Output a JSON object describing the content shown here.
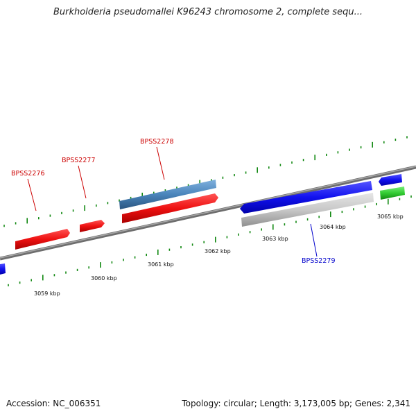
{
  "title": "Burkholderia pseudomallei K96243 chromosome 2, complete sequ...",
  "footer": {
    "accession": "Accession: NC_006351",
    "summary": "Topology: circular; Length: 3,173,005 bp; Genes: 2,341"
  },
  "scale": {
    "labels": [
      "3059 kbp",
      "3060 kbp",
      "3061 kbp",
      "3062 kbp",
      "3063 kbp",
      "3064 kbp",
      "3065 kbp"
    ]
  },
  "colors": {
    "plus_strand_gene": "#ee1111",
    "minus_strand_gene": "#1111ee",
    "selected_gene": "#4a85bb",
    "pseudo_gene": "#c8c8c8",
    "rna_gene": "#33cc33",
    "axis_line": "#888888",
    "tick": "#118811",
    "label_plus": "#cc0000",
    "label_minus": "#0000cc"
  },
  "genes": {
    "plus_labels": [
      "BPSS2276",
      "BPSS2277",
      "BPSS2278"
    ],
    "minus_labels": [
      "BPSS2279"
    ]
  }
}
